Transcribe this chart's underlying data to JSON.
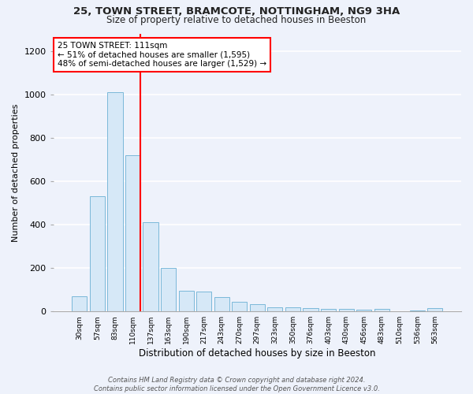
{
  "title1": "25, TOWN STREET, BRAMCOTE, NOTTINGHAM, NG9 3HA",
  "title2": "Size of property relative to detached houses in Beeston",
  "xlabel": "Distribution of detached houses by size in Beeston",
  "ylabel": "Number of detached properties",
  "bar_labels": [
    "30sqm",
    "57sqm",
    "83sqm",
    "110sqm",
    "137sqm",
    "163sqm",
    "190sqm",
    "217sqm",
    "243sqm",
    "270sqm",
    "297sqm",
    "323sqm",
    "350sqm",
    "376sqm",
    "403sqm",
    "430sqm",
    "456sqm",
    "483sqm",
    "510sqm",
    "536sqm",
    "563sqm"
  ],
  "bar_values": [
    70,
    530,
    1010,
    720,
    410,
    200,
    95,
    90,
    65,
    45,
    35,
    20,
    20,
    15,
    10,
    10,
    8,
    10,
    2,
    5,
    15
  ],
  "bar_color": "#d6e8f7",
  "bar_edge_color": "#7ab8d9",
  "annotation_text": "25 TOWN STREET: 111sqm\n← 51% of detached houses are smaller (1,595)\n48% of semi-detached houses are larger (1,529) →",
  "annotation_box_color": "white",
  "annotation_box_edge": "red",
  "vline_color": "red",
  "ylim": [
    0,
    1280
  ],
  "yticks": [
    0,
    200,
    400,
    600,
    800,
    1000,
    1200
  ],
  "background_color": "#eef2fb",
  "grid_color": "white",
  "footnote": "Contains HM Land Registry data © Crown copyright and database right 2024.\nContains public sector information licensed under the Open Government Licence v3.0."
}
